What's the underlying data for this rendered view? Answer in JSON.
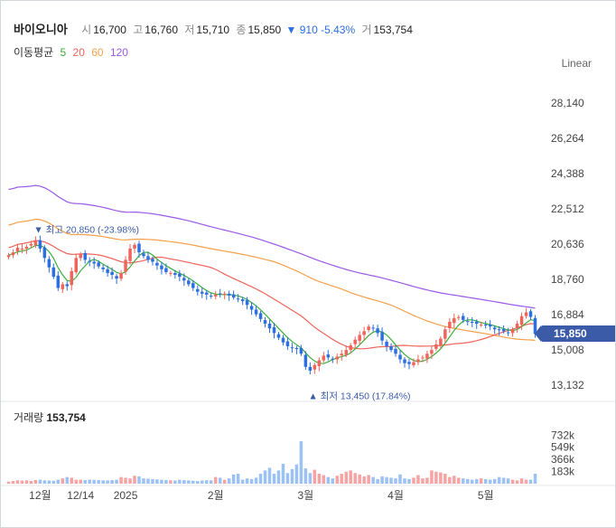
{
  "header": {
    "name": "바이오니아",
    "open_label": "시",
    "open": "16,700",
    "high_label": "고",
    "high": "16,760",
    "low_label": "저",
    "low": "15,710",
    "close_label": "종",
    "close": "15,850",
    "change": "▼ 910 -5.43%",
    "volume_label": "거",
    "volume": "153,754"
  },
  "moving_average": {
    "label": "이동평균",
    "periods": [
      {
        "label": "5",
        "color": "#3cae3c"
      },
      {
        "label": "20",
        "color": "#f0645a"
      },
      {
        "label": "60",
        "color": "#f5a04a"
      },
      {
        "label": "120",
        "color": "#9b59e8"
      }
    ]
  },
  "scale_button": "Linear",
  "last_price": "15,850",
  "volume_title": {
    "label": "거래량",
    "value": "153,754"
  },
  "colors": {
    "up": "#f0645a",
    "down": "#2c6fe0",
    "up_vol": "#f7a3a3",
    "down_vol": "#9cc2f5",
    "badge": "#3b5ba8"
  },
  "chart_data": {
    "type": "candlestick",
    "price_axis": {
      "ticks": [
        "28,140",
        "26,264",
        "24,388",
        "22,512",
        "20,636",
        "18,760",
        "16,884",
        "15,008",
        "13,132"
      ],
      "range": [
        12500,
        29500
      ]
    },
    "volume_axis": {
      "ticks": [
        "732k",
        "549k",
        "366k",
        "183k"
      ],
      "range": [
        0,
        900000
      ]
    },
    "x_ticks": [
      "12월",
      "12/14",
      "2025",
      "2월",
      "3월",
      "4월",
      "5월"
    ],
    "x_tick_index": [
      7,
      16,
      26,
      46,
      66,
      86,
      106
    ],
    "annotations": {
      "high": {
        "label": "▼ 최고 20,850 (-23.98%)",
        "index": 6,
        "price": 20850
      },
      "low": {
        "label": "▲ 최저 13,450 (17.84%)",
        "index": 67,
        "price": 13450
      }
    },
    "close": [
      20050,
      20200,
      20450,
      20400,
      20500,
      20650,
      20850,
      20400,
      19900,
      19400,
      18900,
      18300,
      18500,
      18400,
      19200,
      19900,
      20100,
      19800,
      19700,
      19600,
      19450,
      19300,
      19100,
      19000,
      18800,
      19100,
      19800,
      20400,
      20600,
      20200,
      20000,
      19800,
      19700,
      19500,
      19300,
      19150,
      19100,
      19000,
      18900,
      18700,
      18500,
      18300,
      18100,
      18000,
      17950,
      17850,
      17950,
      18000,
      18000,
      17900,
      17800,
      17700,
      17600,
      17400,
      17150,
      16900,
      16650,
      16400,
      16150,
      15900,
      15650,
      15400,
      15200,
      15100,
      15050,
      14800,
      14100,
      13900,
      14200,
      14450,
      14700,
      14600,
      14500,
      14650,
      14800,
      15000,
      15250,
      15550,
      15800,
      16000,
      16250,
      16150,
      15900,
      15500,
      15200,
      15000,
      14800,
      14500,
      14300,
      14250,
      14350,
      14500,
      14600,
      14800,
      15000,
      15300,
      15600,
      16100,
      16500,
      16700,
      16750,
      16600,
      16500,
      16450,
      16400,
      16350,
      16300,
      16250,
      16100,
      16050,
      16000,
      15900,
      16100,
      16400,
      16800,
      17000,
      16760,
      15850
    ],
    "volume": [
      30000,
      40000,
      50000,
      45000,
      50000,
      40000,
      55000,
      60000,
      50000,
      48000,
      45000,
      60000,
      80000,
      100000,
      90000,
      60000,
      60000,
      55000,
      60000,
      58000,
      55000,
      52000,
      50000,
      55000,
      60000,
      100000,
      90000,
      80000,
      120000,
      110000,
      80000,
      75000,
      70000,
      65000,
      60000,
      55000,
      50000,
      48000,
      60000,
      55000,
      50000,
      45000,
      40000,
      48000,
      52000,
      50000,
      100000,
      90000,
      60000,
      80000,
      140000,
      150000,
      60000,
      80000,
      70000,
      90000,
      150000,
      200000,
      240000,
      150000,
      200000,
      300000,
      160000,
      220000,
      290000,
      640000,
      230000,
      160000,
      210000,
      150000,
      130000,
      100000,
      80000,
      120000,
      150000,
      180000,
      200000,
      160000,
      140000,
      110000,
      130000,
      100000,
      70000,
      110000,
      100000,
      90000,
      80000,
      140000,
      80000,
      70000,
      90000,
      130000,
      80000,
      90000,
      200000,
      180000,
      170000,
      150000,
      100000,
      120000,
      90000,
      80000,
      70000,
      60000,
      70000,
      80000,
      70000,
      60000,
      70000,
      100000,
      90000,
      80000,
      60000,
      50000,
      80000,
      60000,
      60000,
      150000
    ]
  }
}
